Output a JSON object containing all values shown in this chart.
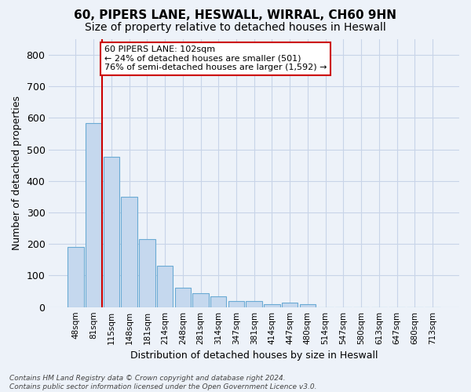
{
  "title_line1": "60, PIPERS LANE, HESWALL, WIRRAL, CH60 9HN",
  "title_line2": "Size of property relative to detached houses in Heswall",
  "xlabel": "Distribution of detached houses by size in Heswall",
  "ylabel": "Number of detached properties",
  "bar_color": "#c5d8ee",
  "bar_edge_color": "#6aaad4",
  "vline_color": "#cc0000",
  "vline_x": 1.5,
  "annotation_text": "60 PIPERS LANE: 102sqm\n← 24% of detached houses are smaller (501)\n76% of semi-detached houses are larger (1,592) →",
  "annotation_box_color": "#ffffff",
  "annotation_box_edge": "#cc0000",
  "categories": [
    "48sqm",
    "81sqm",
    "115sqm",
    "148sqm",
    "181sqm",
    "214sqm",
    "248sqm",
    "281sqm",
    "314sqm",
    "347sqm",
    "381sqm",
    "414sqm",
    "447sqm",
    "480sqm",
    "514sqm",
    "547sqm",
    "580sqm",
    "613sqm",
    "647sqm",
    "680sqm",
    "713sqm"
  ],
  "values": [
    190,
    585,
    478,
    350,
    215,
    130,
    62,
    45,
    33,
    18,
    18,
    8,
    13,
    8,
    0,
    0,
    0,
    0,
    0,
    0,
    0
  ],
  "ylim": [
    0,
    850
  ],
  "yticks": [
    0,
    100,
    200,
    300,
    400,
    500,
    600,
    700,
    800
  ],
  "grid_color": "#c8d4e8",
  "background_color": "#edf2f9",
  "plot_bg_color": "#edf2f9",
  "footer_text": "Contains HM Land Registry data © Crown copyright and database right 2024.\nContains public sector information licensed under the Open Government Licence v3.0.",
  "title_fontsize": 11,
  "subtitle_fontsize": 10
}
